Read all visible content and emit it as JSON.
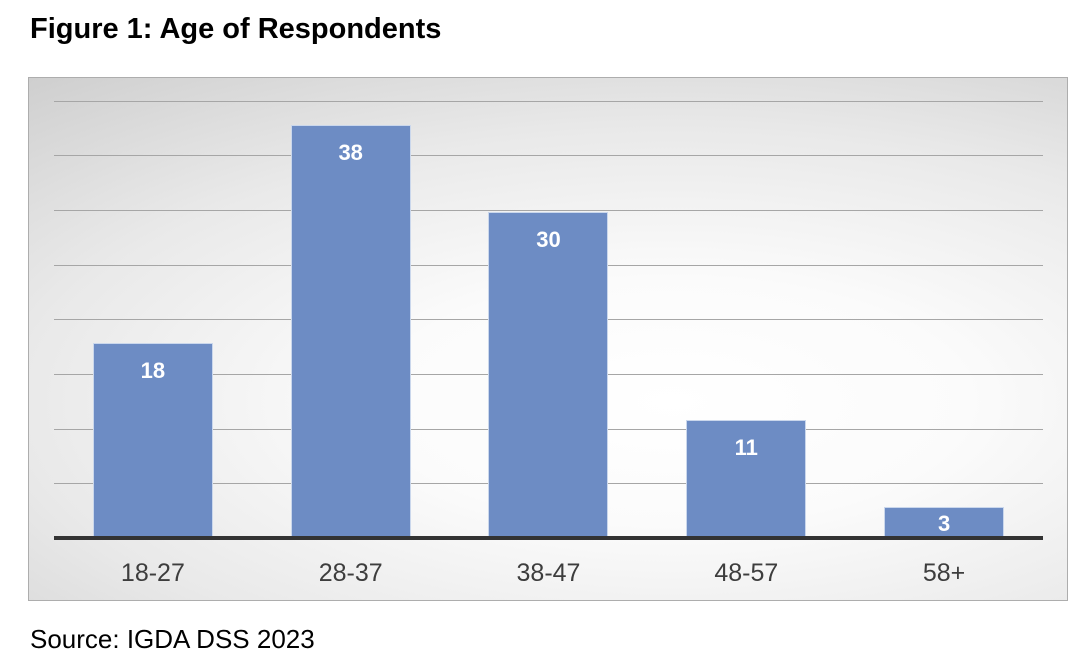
{
  "page": {
    "title": "Figure 1: Age of Respondents",
    "source": "Source: IGDA DSS 2023"
  },
  "chart_data": {
    "type": "bar",
    "title": "Figure 1: Age of Respondents",
    "categories": [
      "18-27",
      "28-37",
      "38-47",
      "48-57",
      "58+"
    ],
    "values": [
      18,
      38,
      30,
      11,
      3
    ],
    "xlabel": "",
    "ylabel": "",
    "ylim": [
      0,
      40
    ],
    "gridline_step": 5,
    "grid": "horizontal",
    "legend_position": "none",
    "value_labels": "inside-end",
    "source": "Source: IGDA DSS 2023",
    "colors": {
      "bar_fill": "#6d8cc4",
      "bar_border": "#cad7ec",
      "value_label": "#ffffff",
      "axis_line": "#333333",
      "gridline": "#a6a6a6",
      "category_label": "#3d3d3d",
      "title": "#000000",
      "page_bg": "#ffffff"
    }
  }
}
